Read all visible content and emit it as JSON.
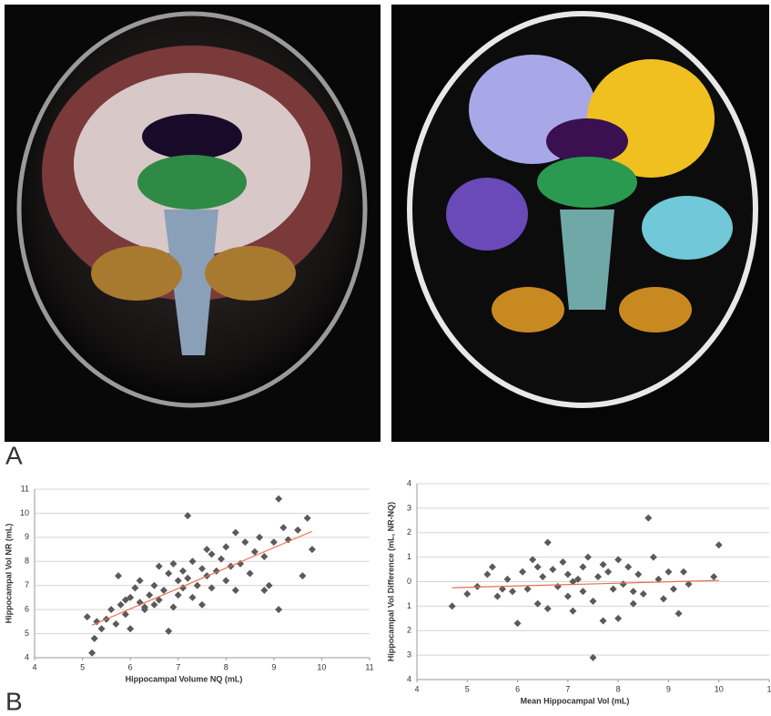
{
  "panel_labels": [
    "A",
    "B"
  ],
  "chart_data": [
    {
      "type": "scatter",
      "x_label": "Hippocampal Volume NQ (mL)",
      "y_label": "Hippocampal Vol NR (mL)",
      "xlim": [
        4,
        11
      ],
      "ylim": [
        4,
        11
      ],
      "xticks": [
        4,
        5,
        6,
        7,
        8,
        9,
        10,
        11
      ],
      "yticks": [
        4,
        5,
        6,
        7,
        8,
        9,
        10,
        11
      ],
      "grid": true,
      "color": "#5a5a5a",
      "x": [
        5.1,
        5.2,
        5.25,
        5.3,
        5.4,
        5.5,
        5.6,
        5.7,
        5.75,
        5.8,
        5.9,
        6.0,
        6.0,
        6.1,
        6.2,
        6.2,
        6.3,
        6.4,
        6.5,
        6.5,
        6.6,
        6.7,
        6.8,
        6.8,
        6.9,
        6.9,
        7.0,
        7.0,
        7.1,
        7.1,
        7.2,
        7.2,
        7.3,
        7.3,
        7.4,
        7.5,
        7.5,
        7.6,
        7.7,
        7.7,
        7.8,
        7.9,
        8.0,
        8.0,
        8.1,
        8.2,
        8.2,
        8.3,
        8.4,
        8.5,
        8.6,
        8.7,
        8.8,
        8.9,
        9.0,
        9.1,
        9.1,
        9.2,
        9.3,
        9.5,
        9.6,
        9.7,
        9.8,
        8.8,
        7.6,
        6.6,
        5.9,
        6.3
      ],
      "values": [
        5.7,
        4.2,
        4.8,
        5.5,
        5.2,
        5.6,
        6.0,
        5.4,
        7.4,
        6.2,
        5.8,
        6.5,
        5.2,
        6.9,
        6.3,
        7.2,
        6.0,
        6.6,
        6.2,
        7.0,
        6.4,
        6.8,
        7.5,
        5.1,
        7.9,
        6.1,
        7.2,
        6.6,
        7.6,
        6.9,
        9.9,
        7.3,
        6.5,
        8.0,
        7.0,
        7.7,
        6.2,
        7.4,
        8.3,
        6.9,
        7.6,
        8.1,
        7.2,
        8.6,
        7.8,
        9.2,
        6.8,
        7.9,
        8.8,
        7.5,
        8.4,
        9.0,
        8.2,
        7.0,
        8.8,
        6.0,
        10.6,
        9.4,
        8.9,
        9.3,
        7.4,
        9.8,
        8.5,
        6.8,
        8.5,
        7.8,
        6.4,
        6.1
      ],
      "trendline": {
        "color": "#e8704f",
        "x": [
          5.2,
          9.8
        ],
        "values": [
          5.35,
          9.25
        ]
      }
    },
    {
      "type": "scatter",
      "x_label": "Mean Hippocampal Vol (mL)",
      "y_label": "Hippocampal Vol Difference (mL, NR-NQ)",
      "xlim": [
        4,
        11
      ],
      "ylim": [
        -4,
        4
      ],
      "xticks": [
        4,
        5,
        6,
        7,
        8,
        9,
        10,
        {
          "value": 11,
          "label": "1"
        }
      ],
      "yticks": [
        {
          "value": -4,
          "label": "4"
        },
        {
          "value": -3,
          "label": "3"
        },
        {
          "value": -2,
          "label": "2"
        },
        {
          "value": -1,
          "label": "1"
        },
        0,
        1,
        2,
        3,
        4
      ],
      "grid": true,
      "color": "#5a5a5a",
      "x": [
        4.7,
        5.0,
        5.2,
        5.4,
        5.5,
        5.6,
        5.8,
        5.9,
        6.0,
        6.1,
        6.2,
        6.3,
        6.4,
        6.5,
        6.6,
        6.6,
        6.7,
        6.8,
        6.9,
        7.0,
        7.0,
        7.1,
        7.2,
        7.3,
        7.3,
        7.4,
        7.5,
        7.5,
        7.6,
        7.7,
        7.8,
        7.9,
        8.0,
        8.0,
        8.1,
        8.2,
        8.3,
        8.4,
        8.5,
        8.6,
        8.7,
        8.8,
        8.9,
        9.0,
        9.1,
        9.2,
        9.3,
        9.4,
        9.9,
        10.0,
        5.7,
        6.4,
        7.1,
        7.7,
        8.3
      ],
      "values": [
        -1.0,
        -0.5,
        -0.2,
        0.3,
        0.6,
        -0.6,
        0.1,
        -0.4,
        -1.7,
        0.4,
        -0.3,
        0.9,
        -0.9,
        0.2,
        1.6,
        -1.1,
        0.5,
        -0.2,
        0.8,
        -0.6,
        0.3,
        -1.2,
        0.1,
        0.6,
        -0.4,
        1.0,
        -0.8,
        -3.1,
        0.2,
        -1.6,
        0.4,
        -0.3,
        0.9,
        -1.5,
        -0.1,
        0.6,
        -0.9,
        0.3,
        -0.5,
        2.6,
        1.0,
        0.1,
        -0.7,
        0.4,
        -0.3,
        -1.3,
        0.4,
        -0.1,
        0.2,
        1.5,
        -0.3,
        0.6,
        0.0,
        0.7,
        -0.4
      ],
      "trendline": {
        "color": "#e8704f",
        "x": [
          4.7,
          10.0
        ],
        "values": [
          -0.25,
          0.05
        ]
      }
    }
  ]
}
